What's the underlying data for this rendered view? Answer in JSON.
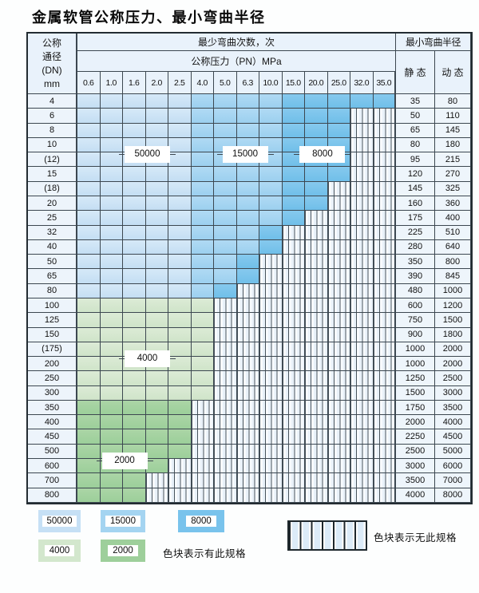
{
  "title": "金属软管公称压力、最小弯曲半径",
  "table": {
    "dn_header_lines": [
      "公称",
      "通径",
      "(DN)",
      "mm"
    ],
    "bend_cycles_header": "最少弯曲次数，次",
    "pressure_header": "公称压力（PN）MPa",
    "radius_header": "最小弯曲半径",
    "static_header": "静 态",
    "dynamic_header": "动 态",
    "pressure_columns": [
      "0.6",
      "1.0",
      "1.6",
      "2.0",
      "2.5",
      "4.0",
      "5.0",
      "6.3",
      "10.0",
      "15.0",
      "20.0",
      "25.0",
      "32.0",
      "35.0"
    ],
    "rows": [
      {
        "dn": "4",
        "static": "35",
        "dynamic": "80",
        "bands": [
          [
            "b1",
            5
          ],
          [
            "b2",
            9
          ],
          [
            "b3",
            14
          ]
        ]
      },
      {
        "dn": "6",
        "static": "50",
        "dynamic": "110",
        "bands": [
          [
            "b1",
            5
          ],
          [
            "b2",
            9
          ],
          [
            "b3",
            12
          ]
        ]
      },
      {
        "dn": "8",
        "static": "65",
        "dynamic": "145",
        "bands": [
          [
            "b1",
            5
          ],
          [
            "b2",
            9
          ],
          [
            "b3",
            12
          ]
        ]
      },
      {
        "dn": "10",
        "static": "80",
        "dynamic": "180",
        "bands": [
          [
            "b1",
            5
          ],
          [
            "b2",
            9
          ],
          [
            "b3",
            12
          ]
        ]
      },
      {
        "dn": "(12)",
        "static": "95",
        "dynamic": "215",
        "bands": [
          [
            "b1",
            5
          ],
          [
            "b2",
            9
          ],
          [
            "b3",
            12
          ]
        ]
      },
      {
        "dn": "15",
        "static": "120",
        "dynamic": "270",
        "bands": [
          [
            "b1",
            5
          ],
          [
            "b2",
            9
          ],
          [
            "b3",
            12
          ]
        ]
      },
      {
        "dn": "(18)",
        "static": "145",
        "dynamic": "325",
        "bands": [
          [
            "b1",
            5
          ],
          [
            "b2",
            9
          ],
          [
            "b3",
            11
          ]
        ]
      },
      {
        "dn": "20",
        "static": "160",
        "dynamic": "360",
        "bands": [
          [
            "b1",
            5
          ],
          [
            "b2",
            9
          ],
          [
            "b3",
            11
          ]
        ]
      },
      {
        "dn": "25",
        "static": "175",
        "dynamic": "400",
        "bands": [
          [
            "b1",
            5
          ],
          [
            "b2",
            9
          ],
          [
            "b3",
            10
          ]
        ]
      },
      {
        "dn": "32",
        "static": "225",
        "dynamic": "510",
        "bands": [
          [
            "b1",
            5
          ],
          [
            "b2",
            8
          ],
          [
            "b3",
            9
          ]
        ]
      },
      {
        "dn": "40",
        "static": "280",
        "dynamic": "640",
        "bands": [
          [
            "b1",
            5
          ],
          [
            "b2",
            8
          ],
          [
            "b3",
            9
          ]
        ]
      },
      {
        "dn": "50",
        "static": "350",
        "dynamic": "800",
        "bands": [
          [
            "b1",
            5
          ],
          [
            "b2",
            7
          ],
          [
            "b3",
            8
          ]
        ]
      },
      {
        "dn": "65",
        "static": "390",
        "dynamic": "845",
        "bands": [
          [
            "b1",
            5
          ],
          [
            "b2",
            7
          ],
          [
            "b3",
            8
          ]
        ]
      },
      {
        "dn": "80",
        "static": "480",
        "dynamic": "1000",
        "bands": [
          [
            "b1",
            5
          ],
          [
            "b2",
            6
          ],
          [
            "b3",
            7
          ]
        ]
      },
      {
        "dn": "100",
        "static": "600",
        "dynamic": "1200",
        "bands": [
          [
            "g1",
            6
          ]
        ]
      },
      {
        "dn": "125",
        "static": "750",
        "dynamic": "1500",
        "bands": [
          [
            "g1",
            6
          ]
        ]
      },
      {
        "dn": "150",
        "static": "900",
        "dynamic": "1800",
        "bands": [
          [
            "g1",
            6
          ]
        ]
      },
      {
        "dn": "(175)",
        "static": "1000",
        "dynamic": "2000",
        "bands": [
          [
            "g1",
            6
          ]
        ]
      },
      {
        "dn": "200",
        "static": "1000",
        "dynamic": "2000",
        "bands": [
          [
            "g1",
            6
          ]
        ]
      },
      {
        "dn": "250",
        "static": "1250",
        "dynamic": "2500",
        "bands": [
          [
            "g1",
            6
          ]
        ]
      },
      {
        "dn": "300",
        "static": "1500",
        "dynamic": "3000",
        "bands": [
          [
            "g1",
            6
          ]
        ]
      },
      {
        "dn": "350",
        "static": "1750",
        "dynamic": "3500",
        "bands": [
          [
            "g2",
            5
          ]
        ]
      },
      {
        "dn": "400",
        "static": "2000",
        "dynamic": "4000",
        "bands": [
          [
            "g2",
            5
          ]
        ]
      },
      {
        "dn": "450",
        "static": "2250",
        "dynamic": "4500",
        "bands": [
          [
            "g2",
            5
          ]
        ]
      },
      {
        "dn": "500",
        "static": "2500",
        "dynamic": "5000",
        "bands": [
          [
            "g2",
            5
          ]
        ]
      },
      {
        "dn": "600",
        "static": "3000",
        "dynamic": "6000",
        "bands": [
          [
            "g2",
            4
          ]
        ]
      },
      {
        "dn": "700",
        "static": "3500",
        "dynamic": "7000",
        "bands": [
          [
            "g2",
            3
          ]
        ]
      },
      {
        "dn": "800",
        "static": "4000",
        "dynamic": "8000",
        "bands": [
          [
            "g2",
            3
          ]
        ]
      }
    ],
    "region_labels": [
      {
        "text": "50000",
        "col_start": 3,
        "col_end": 4,
        "row_boundary": 4
      },
      {
        "text": "15000",
        "col_start": 7.3,
        "col_end": 8.3,
        "row_boundary": 4
      },
      {
        "text": "8000",
        "col_start": 10.7,
        "col_end": 11.7,
        "row_boundary": 4
      },
      {
        "text": "4000",
        "col_start": 3,
        "col_end": 4,
        "row_boundary": 18
      },
      {
        "text": "2000",
        "col_start": 2,
        "col_end": 3,
        "row_boundary": 25
      }
    ]
  },
  "legend": {
    "has_spec_items": [
      {
        "label": "50000",
        "band": "b1"
      },
      {
        "label": "15000",
        "band": "b2"
      },
      {
        "label": "8000",
        "band": "b3"
      },
      {
        "label": "4000",
        "band": "g1"
      },
      {
        "label": "2000",
        "band": "g2"
      }
    ],
    "has_spec_caption": "色块表示有此规格",
    "no_spec_caption": "色块表示无此规格"
  },
  "colors": {
    "cycles_50000": "#c6e0f5",
    "cycles_15000": "#a4d4f1",
    "cycles_8000": "#79c3ec",
    "cycles_4000": "#d3e7cd",
    "cycles_2000": "#9ecf9b",
    "header_bg": "#e9f2fb",
    "grid_line": "#3c4750"
  }
}
